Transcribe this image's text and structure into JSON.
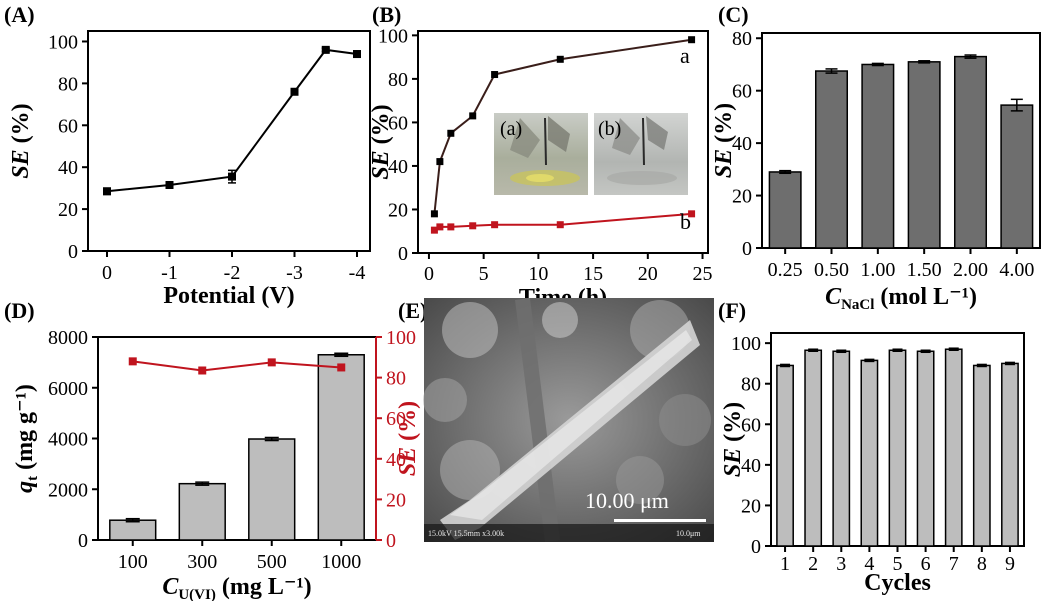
{
  "colors": {
    "bar_dark": "#6e6e6e",
    "bar_light": "#bdbdbd",
    "red": "#c0141e",
    "black": "#000000"
  },
  "panels": {
    "A": {
      "label": "(A)"
    },
    "B": {
      "label": "(B)",
      "inset_a": "(a)",
      "inset_b": "(b)",
      "curve_a": "a",
      "curve_b": "b"
    },
    "C": {
      "label": "(C)",
      "xlabel_sub": "NaCl"
    },
    "D": {
      "label": "(D)",
      "xlabel_sub": "U(VI)"
    },
    "E": {
      "label": "(E)",
      "scale_label": "10.00 μm",
      "footer": "15.0kV 15.5mm x3.00k",
      "footer_scale": "10.0μm"
    },
    "F": {
      "label": "(F)"
    }
  },
  "chart_data": [
    {
      "id": "A",
      "type": "line",
      "x": [
        0,
        -1,
        -2,
        -3,
        -3.5,
        -4
      ],
      "values": [
        28.5,
        31.5,
        35.5,
        76,
        96,
        94
      ],
      "errors": [
        1.5,
        1.5,
        3,
        0.8,
        0.8,
        1.5
      ],
      "xticks": [
        "0",
        "-1",
        "-2",
        "-3",
        "-4"
      ],
      "yticks": [
        "0",
        "20",
        "40",
        "60",
        "80",
        "100"
      ],
      "xlabel": "Potential (V)",
      "ylabel": "SE (%)",
      "ylim": [
        0,
        105
      ]
    },
    {
      "id": "B",
      "type": "line",
      "series": [
        {
          "name": "a",
          "x": [
            0.5,
            1,
            2,
            4,
            6,
            12,
            24
          ],
          "values": [
            18,
            42,
            55,
            63,
            82,
            89,
            98
          ]
        },
        {
          "name": "b",
          "x": [
            0.5,
            1,
            2,
            4,
            6,
            12,
            24
          ],
          "values": [
            10.5,
            12,
            12,
            12.5,
            13,
            13,
            18
          ]
        }
      ],
      "xticks": [
        "0",
        "5",
        "10",
        "15",
        "20",
        "25"
      ],
      "yticks": [
        "0",
        "20",
        "40",
        "60",
        "80",
        "100"
      ],
      "xlabel": "Time (h)",
      "ylabel": "SE (%)",
      "xlim": [
        -1,
        25.5
      ],
      "ylim": [
        0,
        102
      ]
    },
    {
      "id": "C",
      "type": "bar",
      "categories": [
        "0.25",
        "0.50",
        "1.00",
        "1.50",
        "2.00",
        "4.00"
      ],
      "values": [
        29,
        67.5,
        70,
        71,
        73,
        54.5
      ],
      "errors": [
        0.5,
        0.8,
        0.4,
        0.4,
        0.6,
        2.2
      ],
      "yticks": [
        "0",
        "20",
        "40",
        "60",
        "80"
      ],
      "xlabel": "C",
      "xlabel_unit": " (mol L⁻¹)",
      "ylabel": "SE (%)",
      "ylim": [
        0,
        82
      ]
    },
    {
      "id": "D",
      "type": "bar",
      "categories": [
        "100",
        "300",
        "500",
        "1000"
      ],
      "values": [
        780,
        2220,
        3980,
        7300
      ],
      "errors": [
        60,
        60,
        60,
        60
      ],
      "line_series": {
        "name": "SE (%)",
        "values": [
          88,
          83.5,
          87.5,
          85
        ]
      },
      "yticks": [
        "0",
        "2000",
        "4000",
        "6000",
        "8000"
      ],
      "y2ticks": [
        "0",
        "20",
        "40",
        "60",
        "80",
        "100"
      ],
      "xlabel": "C",
      "xlabel_unit": " (mg L⁻¹)",
      "ylabel": "q",
      "ylabel_sub": "t",
      "ylabel_unit": " (mg g⁻¹)",
      "y2label": "SE (%)",
      "ylim": [
        0,
        8000
      ],
      "y2lim": [
        0,
        100
      ]
    },
    {
      "id": "F",
      "type": "bar",
      "categories": [
        "1",
        "2",
        "3",
        "4",
        "5",
        "6",
        "7",
        "8",
        "9"
      ],
      "values": [
        89,
        96.5,
        96,
        91.5,
        96.5,
        96,
        97,
        89,
        90
      ],
      "errors": [
        0.5,
        0.5,
        0.5,
        0.5,
        0.5,
        0.5,
        0.5,
        0.5,
        0.5
      ],
      "yticks": [
        "0",
        "20",
        "40",
        "60",
        "80",
        "100"
      ],
      "xlabel": "Cycles",
      "ylabel": "SE (%)",
      "ylim": [
        0,
        105
      ]
    }
  ]
}
